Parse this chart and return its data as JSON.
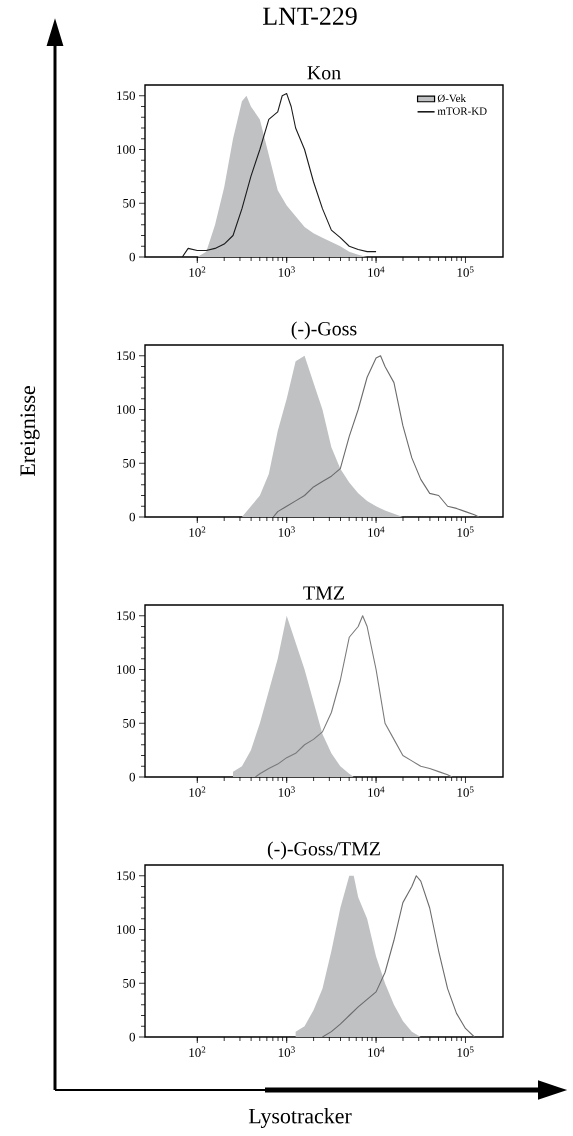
{
  "chart_data": [
    {
      "type": "area",
      "title": "LNT-229",
      "subtitle": "Kon",
      "log": "x",
      "legend": "top right",
      "xlim": [
        26,
        263000
      ],
      "ylim": [
        0,
        160
      ],
      "xticks": [
        {
          "value": 100,
          "label": "10$^{2}$"
        },
        {
          "value": 1000,
          "label": "10$^{3}$"
        },
        {
          "value": 10000,
          "label": "10$^{4}$"
        },
        {
          "value": 100000,
          "label": "10$^{5}$"
        }
      ],
      "yticks": [
        0,
        50,
        100,
        150
      ],
      "series": [
        {
          "name": "Ø-Vek",
          "color": "#bfc1c3",
          "x": [
            100,
            126,
            158,
            200,
            251,
            316,
            355,
            398,
            501,
            631,
            794,
            1000,
            1259,
            1585,
            1995,
            2512,
            3162,
            3981,
            5012,
            6310,
            7943
          ],
          "values": [
            0,
            5,
            30,
            65,
            110,
            145,
            150,
            140,
            128,
            95,
            62,
            48,
            38,
            28,
            22,
            18,
            14,
            10,
            5,
            2,
            0
          ]
        },
        {
          "name": "mTOR-KD",
          "type": "line",
          "color": "#1a1a1a",
          "x": [
            68,
            79,
            100,
            126,
            158,
            200,
            251,
            316,
            398,
            501,
            631,
            794,
            891,
            1000,
            1122,
            1259,
            1585,
            1995,
            2512,
            3162,
            3981,
            5012,
            6310,
            7943,
            10000
          ],
          "values": [
            0,
            8,
            6,
            6,
            8,
            12,
            20,
            45,
            75,
            100,
            128,
            135,
            150,
            152,
            140,
            120,
            100,
            70,
            45,
            25,
            18,
            10,
            7,
            5,
            5
          ]
        }
      ]
    },
    {
      "type": "area",
      "title": "(-)-Goss",
      "ylabel": "Ereignisse",
      "log": "x",
      "xlim": [
        26,
        263000
      ],
      "ylim": [
        0,
        160
      ],
      "xticks": [
        {
          "value": 100,
          "label": "10$^{2}$"
        },
        {
          "value": 1000,
          "label": "10$^{3}$"
        },
        {
          "value": 10000,
          "label": "10$^{4}$"
        },
        {
          "value": 100000,
          "label": "10$^{5}$"
        }
      ],
      "yticks": [
        0,
        50,
        100,
        150
      ],
      "series": [
        {
          "color": "#bfc1c3",
          "x": [
            316,
            398,
            501,
            631,
            794,
            1000,
            1259,
            1585,
            1995,
            2512,
            3162,
            3981,
            5012,
            6310,
            7943,
            10000,
            12589,
            15849,
            19953
          ],
          "values": [
            0,
            10,
            20,
            40,
            80,
            110,
            145,
            150,
            125,
            100,
            65,
            45,
            32,
            22,
            15,
            10,
            6,
            3,
            0
          ]
        },
        {
          "type": "line",
          "color": "#6b6b6b",
          "x": [
            708,
            794,
            1000,
            1259,
            1585,
            1995,
            2512,
            3162,
            3981,
            5012,
            6310,
            7943,
            10000,
            11220,
            12589,
            15849,
            19953,
            25119,
            31623,
            39811,
            50119,
            63096,
            79433,
            100000,
            125893,
            141254
          ],
          "values": [
            0,
            5,
            10,
            15,
            20,
            28,
            33,
            38,
            45,
            75,
            100,
            130,
            148,
            150,
            140,
            125,
            85,
            55,
            35,
            22,
            20,
            10,
            8,
            5,
            2,
            0
          ]
        }
      ]
    },
    {
      "type": "area",
      "title": "TMZ",
      "log": "x",
      "xlim": [
        26,
        263000
      ],
      "ylim": [
        0,
        160
      ],
      "xticks": [
        {
          "value": 100,
          "label": "10$^{2}$"
        },
        {
          "value": 1000,
          "label": "10$^{3}$"
        },
        {
          "value": 10000,
          "label": "10$^{4}$"
        },
        {
          "value": 100000,
          "label": "10$^{5}$"
        }
      ],
      "yticks": [
        0,
        50,
        100,
        150
      ],
      "series": [
        {
          "color": "#bfc1c3",
          "x": [
            251,
            316,
            398,
            501,
            631,
            794,
            1000,
            1259,
            1585,
            1995,
            2512,
            3162,
            3981,
            5012,
            5623
          ],
          "values": [
            5,
            10,
            25,
            50,
            80,
            110,
            150,
            125,
            100,
            70,
            40,
            22,
            10,
            3,
            0
          ]
        },
        {
          "type": "line",
          "color": "#7a7a7a",
          "x": [
            447,
            501,
            631,
            794,
            1000,
            1259,
            1585,
            1995,
            2512,
            3162,
            3981,
            5012,
            6310,
            7079,
            7943,
            10000,
            12589,
            15849,
            19953,
            25119,
            31623,
            39811,
            50119,
            63096,
            70795
          ],
          "values": [
            0,
            3,
            8,
            12,
            18,
            22,
            30,
            35,
            42,
            60,
            90,
            130,
            140,
            150,
            140,
            100,
            50,
            35,
            20,
            15,
            10,
            8,
            5,
            2,
            0
          ]
        }
      ]
    },
    {
      "type": "area",
      "title": "(-)-Goss/TMZ",
      "xlabel": "Lysotracker",
      "log": "x",
      "xlim": [
        26,
        263000
      ],
      "ylim": [
        0,
        160
      ],
      "xticks": [
        {
          "value": 100,
          "label": "10$^{2}$"
        },
        {
          "value": 1000,
          "label": "10$^{3}$"
        },
        {
          "value": 10000,
          "label": "10$^{4}$"
        },
        {
          "value": 100000,
          "label": "10$^{5}$"
        }
      ],
      "yticks": [
        0,
        50,
        100,
        150
      ],
      "series": [
        {
          "color": "#bfc1c3",
          "x": [
            1259,
            1585,
            1995,
            2512,
            3162,
            3981,
            5012,
            5623,
            6310,
            7943,
            10000,
            12589,
            15849,
            19953,
            25119,
            31623
          ],
          "values": [
            5,
            10,
            25,
            45,
            80,
            120,
            150,
            150,
            130,
            110,
            75,
            50,
            30,
            15,
            5,
            0
          ]
        },
        {
          "type": "line",
          "color": "#6b6b6b",
          "x": [
            2512,
            3162,
            3981,
            5012,
            6310,
            7943,
            10000,
            12589,
            15849,
            19953,
            25119,
            28184,
            31623,
            39811,
            50119,
            63096,
            79433,
            100000,
            125893
          ],
          "values": [
            0,
            5,
            12,
            20,
            28,
            35,
            42,
            60,
            90,
            125,
            140,
            150,
            145,
            120,
            80,
            45,
            22,
            8,
            0
          ]
        }
      ]
    }
  ]
}
